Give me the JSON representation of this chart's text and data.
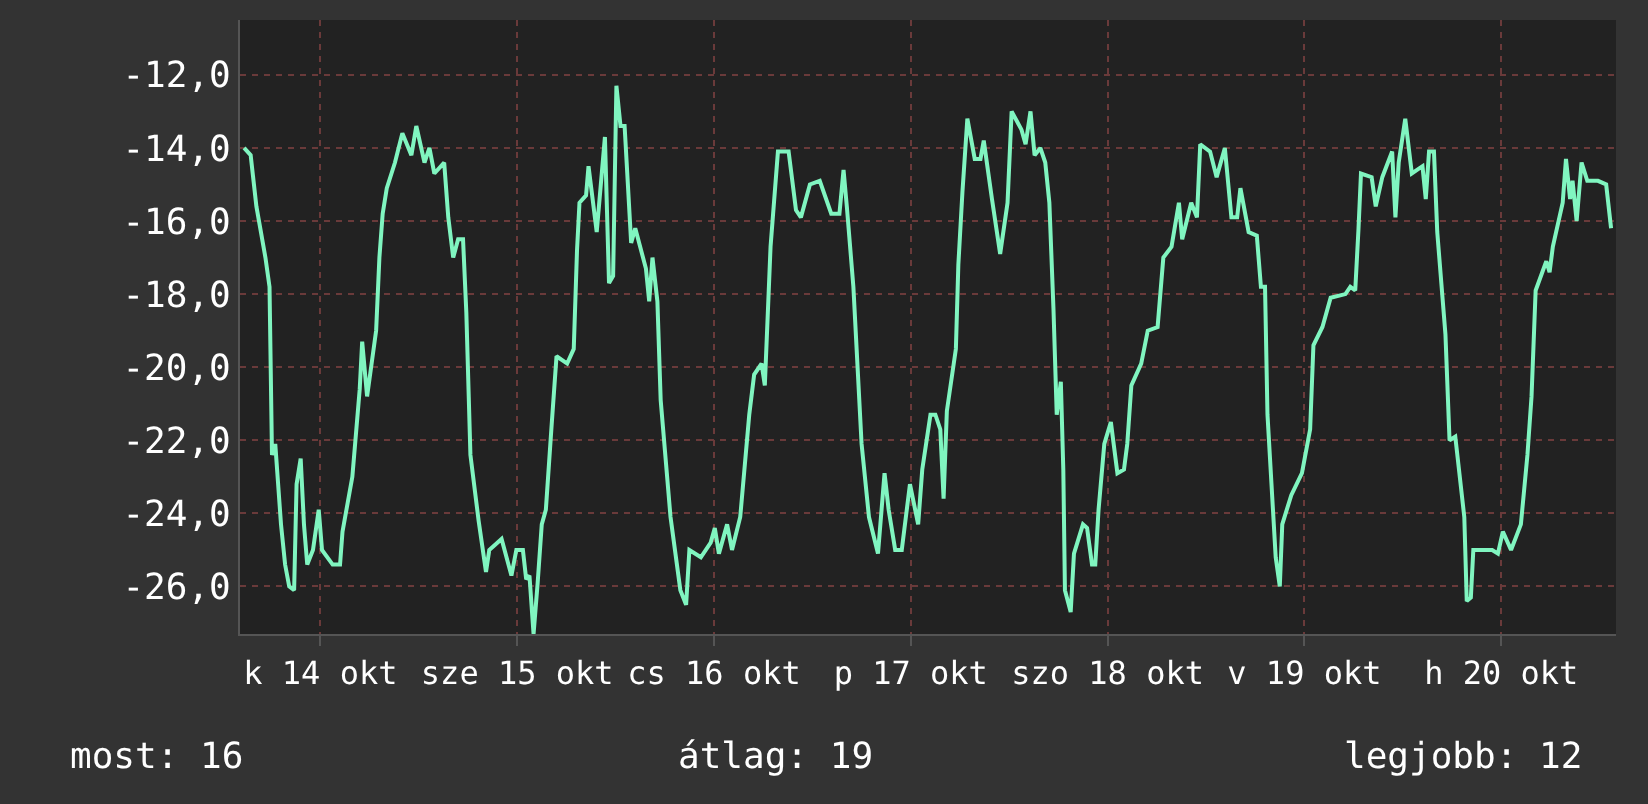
{
  "chart_data": {
    "type": "line",
    "x": [
      "--10-14T02:42",
      "--10-14T03:30",
      "--10-14T04:12",
      "--10-14T05:18",
      "--10-14T05:48",
      "--10-14T06:06",
      "--10-14T06:30",
      "--10-14T07:12",
      "--10-14T07:42",
      "--10-14T08:12",
      "--10-14T08:48",
      "--10-14T09:06",
      "--10-14T09:36",
      "--10-14T10:00",
      "--10-14T10:24",
      "--10-14T11:06",
      "--10-14T11:48",
      "--10-14T12:12",
      "--10-14T13:30",
      "--10-14T14:24",
      "--10-14T14:42",
      "--10-14T15:54",
      "--10-14T16:48",
      "--10-14T17:06",
      "--10-14T17:42",
      "--10-14T18:48",
      "--10-14T19:12",
      "--10-14T19:36",
      "--10-14T20:06",
      "--10-14T21:06",
      "--10-14T22:00",
      "--10-14T23:06",
      "--10-14T23:42",
      "--10-15T00:42",
      "--10-15T01:18",
      "--10-15T01:54",
      "--10-15T03:06",
      "--10-15T03:36",
      "--10-15T04:12",
      "--10-15T04:48",
      "--10-15T05:24",
      "--10-15T05:48",
      "--10-15T06:18",
      "--10-15T07:18",
      "--10-15T08:12",
      "--10-15T08:36",
      "--10-15T10:06",
      "--10-15T11:18",
      "--10-15T11:54",
      "--10-15T12:42",
      "--10-15T13:06",
      "--10-15T13:30",
      "--10-15T14:00",
      "--10-15T14:30",
      "--10-15T15:00",
      "--10-15T15:30",
      "--10-15T16:12",
      "--10-15T16:48",
      "--10-15T18:06",
      "--10-15T18:54",
      "--10-15T19:18",
      "--10-15T19:36",
      "--10-15T20:24",
      "--10-15T20:42",
      "--10-15T21:42",
      "--10-15T22:42",
      "--10-15T23:12",
      "--10-15T23:42",
      "--10-16T00:06",
      "--10-16T00:36",
      "--10-16T01:06",
      "--10-16T01:54",
      "--10-16T02:24",
      "--10-16T03:42",
      "--10-16T04:06",
      "--10-16T04:30",
      "--10-16T05:06",
      "--10-16T05:30",
      "--10-16T06:42",
      "--10-16T07:54",
      "--10-16T08:36",
      "--10-16T09:00",
      "--10-16T10:24",
      "--10-16T11:36",
      "--10-16T12:06",
      "--10-16T12:36",
      "--10-16T13:36",
      "--10-16T14:12",
      "--10-16T15:12",
      "--10-16T16:18",
      "--10-16T16:54",
      "--10-16T17:48",
      "--10-16T18:12",
      "--10-16T18:54",
      "--10-16T19:48",
      "--10-16T21:06",
      "--10-16T22:00",
      "--10-16T22:36",
      "--10-16T23:42",
      "--10-17T00:54",
      "--10-17T02:18",
      "--10-17T03:18",
      "--10-17T03:48",
      "--10-17T04:12",
      "--10-17T05:00",
      "--10-17T06:00",
      "--10-17T06:54",
      "--10-17T08:00",
      "--10-17T08:48",
      "--10-17T09:18",
      "--10-17T10:06",
      "--10-17T10:54",
      "--10-17T11:54",
      "--10-17T12:54",
      "--10-17T13:24",
      "--10-17T14:24",
      "--10-17T15:00",
      "--10-17T15:36",
      "--10-17T16:00",
      "--10-17T16:24",
      "--10-17T17:30",
      "--10-17T17:48",
      "--10-17T18:18",
      "--10-17T18:54",
      "--10-17T19:48",
      "--10-17T20:30",
      "--10-17T20:54",
      "--10-17T21:54",
      "--10-17T22:54",
      "--10-17T23:48",
      "--10-18T00:18",
      "--10-18T01:30",
      "--10-18T02:00",
      "--10-18T02:36",
      "--10-18T03:06",
      "--10-18T03:48",
      "--10-18T04:24",
      "--10-18T04:54",
      "--10-18T05:24",
      "--10-18T05:48",
      "--10-18T06:18",
      "--10-18T06:36",
      "--10-18T06:48",
      "--10-18T07:30",
      "--10-18T07:54",
      "--10-18T09:00",
      "--10-18T09:30",
      "--10-18T10:06",
      "--10-18T10:30",
      "--10-18T10:54",
      "--10-18T11:36",
      "--10-18T12:24",
      "--10-18T13:12",
      "--10-18T14:00",
      "--10-18T14:24",
      "--10-18T14:54",
      "--10-18T16:06",
      "--10-18T16:54",
      "--10-18T18:06",
      "--10-18T18:48",
      "--10-18T19:48",
      "--10-18T20:42",
      "--10-18T21:06",
      "--10-18T22:12",
      "--10-18T22:54",
      "--10-18T23:18",
      "--10-19T00:30",
      "--10-19T01:18",
      "--10-19T02:18",
      "--10-19T03:06",
      "--10-19T03:48",
      "--10-19T04:12",
      "--10-19T05:12",
      "--10-19T06:12",
      "--10-19T06:42",
      "--10-19T07:12",
      "--10-19T07:30",
      "--10-19T08:30",
      "--10-19T09:00",
      "--10-19T09:18",
      "--10-19T10:24",
      "--10-19T11:42",
      "--10-19T12:42",
      "--10-19T13:06",
      "--10-19T14:12",
      "--10-19T15:12",
      "--10-19T17:00",
      "--10-19T17:36",
      "--10-19T18:12",
      "--10-19T18:36",
      "--10-19T18:54",
      "--10-19T20:12",
      "--10-19T20:42",
      "--10-19T21:30",
      "--10-19T22:42",
      "--10-19T23:06",
      "--10-19T23:30",
      "--10-20T00:18",
      "--10-20T01:06",
      "--10-20T02:24",
      "--10-20T02:48",
      "--10-20T03:12",
      "--10-20T03:48",
      "--10-20T04:12",
      "--10-20T05:12",
      "--10-20T05:42",
      "--10-20T06:24",
      "--10-20T07:30",
      "--10-20T07:48",
      "--10-20T08:18",
      "--10-20T08:36",
      "--10-20T10:54",
      "--10-20T11:36",
      "--10-20T12:12",
      "--10-20T13:12",
      "--10-20T14:24",
      "--10-20T15:12",
      "--10-20T15:42",
      "--10-20T16:12",
      "--10-20T17:30",
      "--10-20T17:54",
      "--10-20T18:18",
      "--10-20T19:30",
      "--10-20T19:54",
      "--10-20T20:24",
      "--10-20T20:42",
      "--10-20T21:12",
      "--10-20T21:48",
      "--10-20T22:30",
      "--10-20T23:48",
      "--10-21T00:48",
      "--10-21T01:24"
    ],
    "series": [
      {
        "color": "#80f5c0",
        "values": [
          -14.0,
          -14.2,
          -15.6,
          -17.0,
          -17.8,
          -22.4,
          -22.1,
          -24.3,
          -25.4,
          -26.0,
          -26.1,
          -23.2,
          -22.5,
          -24.3,
          -25.4,
          -25.0,
          -23.9,
          -25.0,
          -25.4,
          -25.4,
          -24.5,
          -23.0,
          -20.6,
          -19.3,
          -20.8,
          -19.0,
          -17.0,
          -15.8,
          -15.1,
          -14.4,
          -13.6,
          -14.2,
          -13.4,
          -14.4,
          -14.0,
          -14.7,
          -14.4,
          -15.9,
          -17.0,
          -16.5,
          -16.5,
          -18.5,
          -22.4,
          -24.2,
          -25.6,
          -25.0,
          -24.7,
          -25.7,
          -25.0,
          -25.0,
          -25.8,
          -25.7,
          -27.3,
          -25.9,
          -24.3,
          -23.9,
          -21.6,
          -19.7,
          -19.9,
          -19.5,
          -16.8,
          -15.5,
          -15.3,
          -14.5,
          -16.3,
          -13.7,
          -17.7,
          -17.5,
          -12.3,
          -13.4,
          -13.4,
          -16.6,
          -16.2,
          -17.3,
          -18.2,
          -17.0,
          -18.2,
          -20.9,
          -24.1,
          -26.1,
          -26.5,
          -25.0,
          -25.2,
          -24.8,
          -24.4,
          -25.1,
          -24.3,
          -25.0,
          -24.1,
          -21.3,
          -20.2,
          -19.9,
          -20.5,
          -16.7,
          -14.1,
          -14.1,
          -15.7,
          -15.9,
          -15.0,
          -14.9,
          -15.8,
          -15.8,
          -14.6,
          -15.6,
          -17.8,
          -22.1,
          -24.1,
          -25.1,
          -22.9,
          -23.9,
          -25.0,
          -25.0,
          -23.2,
          -24.3,
          -22.8,
          -21.3,
          -21.3,
          -21.7,
          -23.6,
          -21.2,
          -19.5,
          -17.2,
          -15.2,
          -13.2,
          -14.3,
          -14.3,
          -13.8,
          -15.4,
          -16.9,
          -15.5,
          -13.0,
          -13.5,
          -13.9,
          -13.0,
          -14.2,
          -14.0,
          -14.4,
          -15.5,
          -18.4,
          -21.3,
          -20.4,
          -22.8,
          -26.1,
          -26.7,
          -25.1,
          -24.3,
          -24.4,
          -25.4,
          -25.4,
          -23.9,
          -22.1,
          -21.5,
          -22.9,
          -22.8,
          -22.1,
          -20.5,
          -19.9,
          -19.0,
          -18.9,
          -17.0,
          -16.7,
          -15.5,
          -16.5,
          -15.5,
          -15.9,
          -13.9,
          -14.1,
          -14.8,
          -14.0,
          -15.9,
          -15.9,
          -15.1,
          -16.3,
          -16.4,
          -17.8,
          -17.8,
          -21.3,
          -25.2,
          -26.0,
          -24.3,
          -23.5,
          -22.9,
          -21.7,
          -19.4,
          -18.9,
          -18.1,
          -18.0,
          -17.8,
          -17.9,
          -16.2,
          -14.7,
          -14.8,
          -15.6,
          -14.8,
          -14.1,
          -15.9,
          -14.4,
          -13.2,
          -14.7,
          -14.5,
          -15.4,
          -14.1,
          -14.1,
          -16.3,
          -19.1,
          -22.0,
          -21.9,
          -24.1,
          -26.4,
          -26.3,
          -25.0,
          -25.0,
          -25.1,
          -24.5,
          -25.0,
          -24.3,
          -22.4,
          -20.8,
          -17.9,
          -17.1,
          -17.4,
          -16.7,
          -15.5,
          -14.3,
          -15.4,
          -14.9,
          -16.0,
          -14.4,
          -14.9,
          -14.9,
          -15.0,
          -16.2
        ]
      }
    ],
    "xlim": [
      "--10-14T02:12",
      "--10-21T02:00"
    ],
    "xticks": [
      {
        "value": "--10-14T12:00",
        "label": "k 14 okt"
      },
      {
        "value": "--10-15T12:00",
        "label": "sze 15 okt"
      },
      {
        "value": "--10-16T12:00",
        "label": "cs 16 okt"
      },
      {
        "value": "--10-17T12:00",
        "label": "p 17 okt"
      },
      {
        "value": "--10-18T12:00",
        "label": "szo 18 okt"
      },
      {
        "value": "--10-19T12:00",
        "label": "v 19 okt"
      },
      {
        "value": "--10-20T12:00",
        "label": "h 20 okt"
      }
    ],
    "ylim": [
      -27.3,
      -10.5
    ],
    "yticks": [
      {
        "value": -12,
        "label": "-12,0"
      },
      {
        "value": -14,
        "label": "-14,0"
      },
      {
        "value": -16,
        "label": "-16,0"
      },
      {
        "value": -18,
        "label": "-18,0"
      },
      {
        "value": -20,
        "label": "-20,0"
      },
      {
        "value": -22,
        "label": "-22,0"
      },
      {
        "value": -24,
        "label": "-24,0"
      },
      {
        "value": -26,
        "label": "-26,0"
      }
    ],
    "grid": true,
    "line_style": "solid",
    "annotations": [
      "most: 16",
      "átlag: 19",
      "legjobb: 12"
    ]
  }
}
